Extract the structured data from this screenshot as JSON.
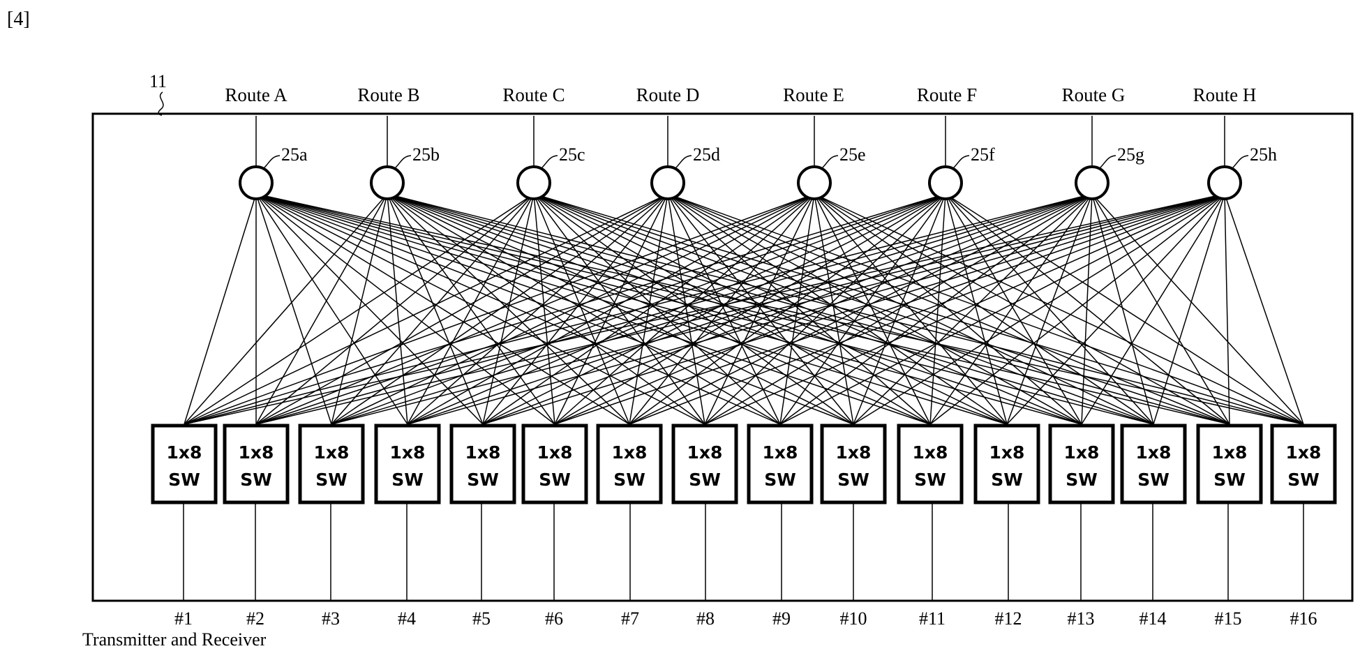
{
  "figure_label": "[4]",
  "device_ref": "11",
  "routes": [
    {
      "label": "Route A",
      "node": "25a"
    },
    {
      "label": "Route B",
      "node": "25b"
    },
    {
      "label": "Route C",
      "node": "25c"
    },
    {
      "label": "Route D",
      "node": "25d"
    },
    {
      "label": "Route E",
      "node": "25e"
    },
    {
      "label": "Route F",
      "node": "25f"
    },
    {
      "label": "Route G",
      "node": "25g"
    },
    {
      "label": "Route H",
      "node": "25h"
    }
  ],
  "switch": {
    "line1": "1x8",
    "line2": "SW"
  },
  "ports": [
    "#1",
    "#2",
    "#3",
    "#4",
    "#5",
    "#6",
    "#7",
    "#8",
    "#9",
    "#10",
    "#11",
    "#12",
    "#13",
    "#14",
    "#15",
    "#16"
  ],
  "caption": "Transmitter and Receiver"
}
